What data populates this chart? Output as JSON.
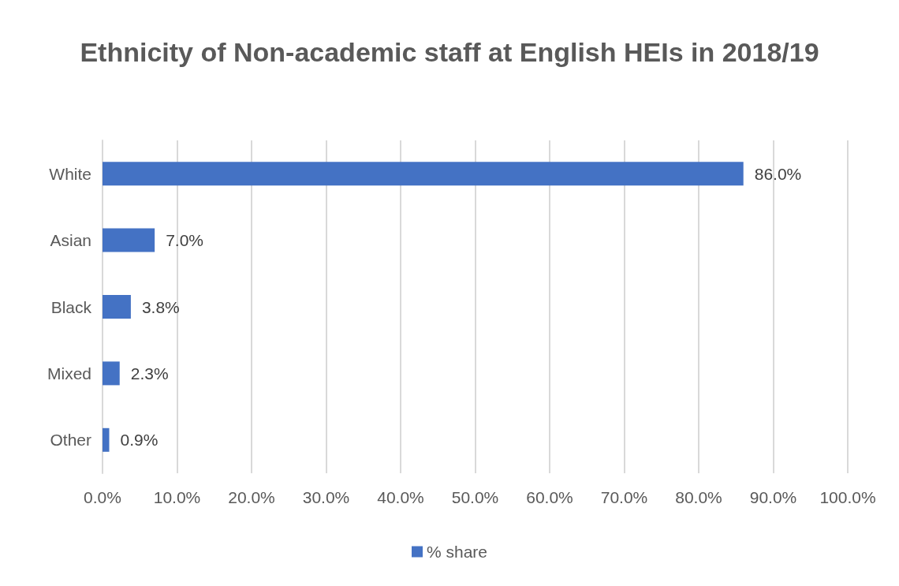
{
  "chart_data": {
    "type": "bar",
    "orientation": "horizontal",
    "title": "Ethnicity of Non-academic staff at English HEIs in 2018/19",
    "categories": [
      "White",
      "Asian",
      "Black",
      "Mixed",
      "Other"
    ],
    "series": [
      {
        "name": "% share",
        "color": "#4472c4",
        "values": [
          86.0,
          7.0,
          3.8,
          2.3,
          0.9
        ],
        "value_labels": [
          "86.0%",
          "7.0%",
          "3.8%",
          "2.3%",
          "0.9%"
        ]
      }
    ],
    "xlim": [
      0,
      100
    ],
    "xticks": [
      {
        "value": 0,
        "label": "0.0%"
      },
      {
        "value": 10,
        "label": "10.0%"
      },
      {
        "value": 20,
        "label": "20.0%"
      },
      {
        "value": 30,
        "label": "30.0%"
      },
      {
        "value": 40,
        "label": "40.0%"
      },
      {
        "value": 50,
        "label": "50.0%"
      },
      {
        "value": 60,
        "label": "60.0%"
      },
      {
        "value": 70,
        "label": "70.0%"
      },
      {
        "value": 80,
        "label": "80.0%"
      },
      {
        "value": 90,
        "label": "90.0%"
      },
      {
        "value": 100,
        "label": "100.0%"
      }
    ],
    "grid": "x",
    "legend": "bottom"
  }
}
